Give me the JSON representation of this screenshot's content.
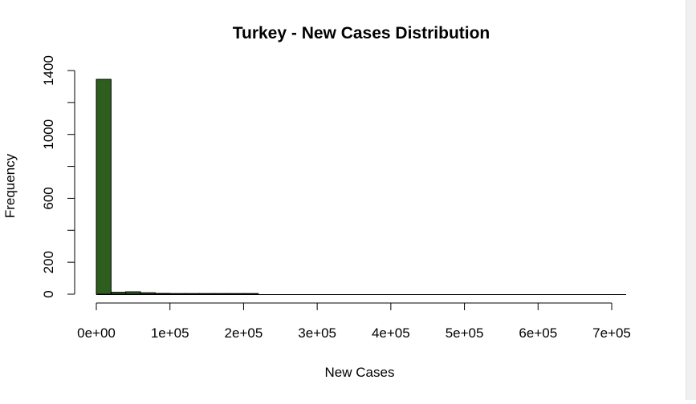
{
  "chart_data": {
    "type": "bar",
    "title": "Turkey - New Cases Distribution",
    "xlabel": "New Cases",
    "ylabel": "Frequency",
    "bin_width": 20000,
    "xlim": [
      0,
      700000
    ],
    "ylim": [
      0,
      1400
    ],
    "x_ticks": [
      0,
      100000,
      200000,
      300000,
      400000,
      500000,
      600000,
      700000
    ],
    "x_tick_labels": [
      "0e+00",
      "1e+05",
      "2e+05",
      "3e+05",
      "4e+05",
      "5e+05",
      "6e+05",
      "7e+05"
    ],
    "y_ticks": [
      0,
      200,
      400,
      600,
      800,
      1000,
      1200,
      1400
    ],
    "y_tick_labels": [
      "0",
      "200",
      "",
      "600",
      "",
      "1000",
      "",
      "1400"
    ],
    "bins_start": [
      0,
      20000,
      40000,
      60000,
      80000,
      100000,
      120000,
      140000,
      160000,
      180000,
      200000,
      220000,
      240000,
      260000,
      280000,
      300000,
      320000,
      340000,
      360000,
      380000,
      400000,
      420000,
      440000,
      460000,
      480000,
      500000,
      520000,
      540000,
      560000,
      580000,
      600000,
      620000,
      640000,
      660000,
      680000
    ],
    "values": [
      1345,
      12,
      15,
      9,
      5,
      2,
      3,
      3,
      2,
      2,
      2,
      0,
      0,
      0,
      0,
      0,
      0,
      0,
      0,
      0,
      0,
      0,
      0,
      0,
      0,
      0,
      0,
      0,
      0,
      0,
      0,
      0,
      0,
      0,
      0
    ],
    "bar_color": "#2d5e1e",
    "bar_border": "#000000",
    "grid": false
  }
}
